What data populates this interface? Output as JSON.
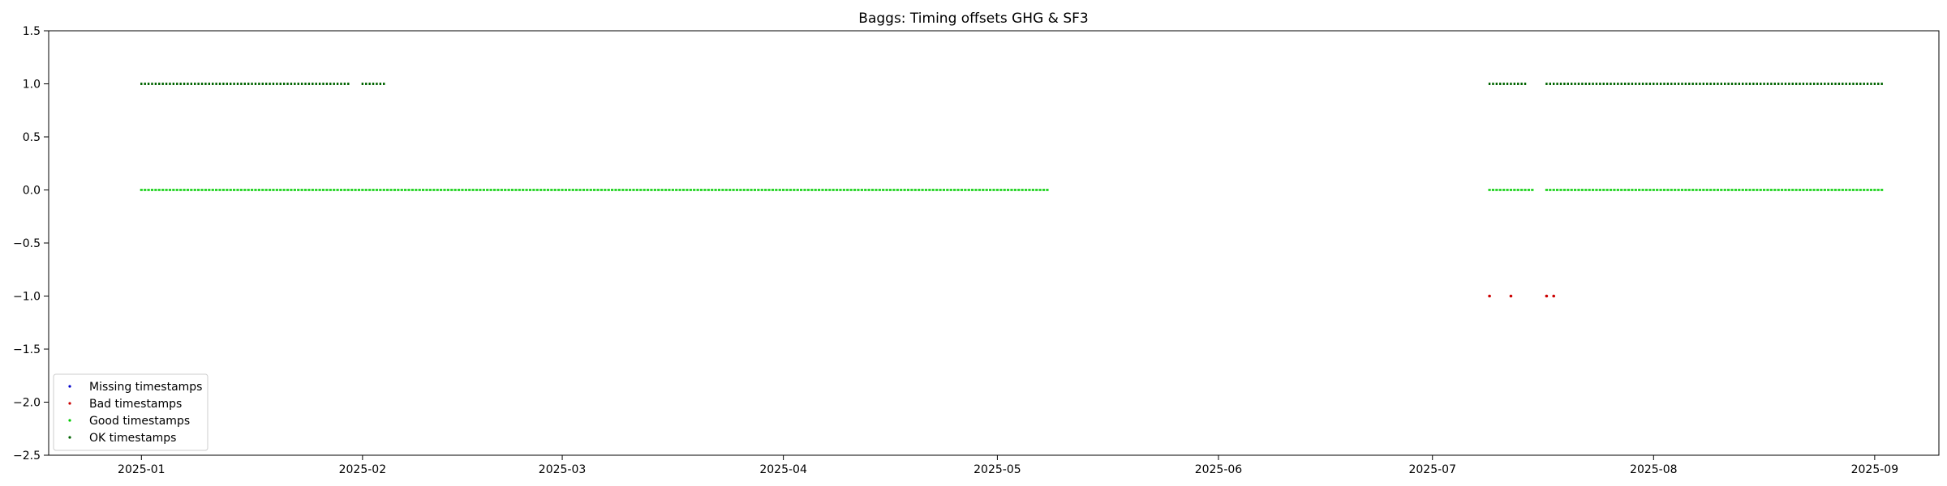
{
  "chart_data": {
    "type": "scatter",
    "title": "Baggs: Timing offsets GHG & SF3",
    "xlabel": "",
    "ylabel": "",
    "x_axis_type": "date",
    "xlim": [
      "2024-12-19",
      "2025-09-10"
    ],
    "ylim": [
      -2.5,
      1.5
    ],
    "x_ticks": [
      "2025-01",
      "2025-02",
      "2025-03",
      "2025-04",
      "2025-05",
      "2025-06",
      "2025-07",
      "2025-08",
      "2025-09"
    ],
    "y_ticks": [
      1.5,
      1.0,
      0.5,
      0.0,
      -0.5,
      -1.0,
      -1.5,
      -2.0,
      -2.5
    ],
    "y_tick_labels": [
      "1.5",
      "1.0",
      "0.5",
      "0.0",
      "−0.5",
      "−1.0",
      "−1.5",
      "−2.0",
      "−2.5"
    ],
    "grid": false,
    "legend": {
      "position": "lower-left",
      "entries": [
        {
          "label": "Missing timestamps",
          "color": "#0000cc"
        },
        {
          "label": "Bad timestamps",
          "color": "#cc0000"
        },
        {
          "label": "Good timestamps",
          "color": "#00cc00"
        },
        {
          "label": "OK timestamps",
          "color": "#006400"
        }
      ]
    },
    "series": [
      {
        "name": "OK timestamps",
        "color": "#006400",
        "y": 1.0,
        "ranges": [
          [
            "2025-01-01",
            "2025-01-30"
          ],
          [
            "2025-02-01",
            "2025-02-04"
          ],
          [
            "2025-07-09",
            "2025-07-14"
          ],
          [
            "2025-07-17",
            "2025-09-02"
          ]
        ]
      },
      {
        "name": "Good timestamps",
        "color": "#00cc00",
        "y": 0.0,
        "ranges": [
          [
            "2025-01-01",
            "2025-05-08"
          ],
          [
            "2025-07-09",
            "2025-07-15"
          ],
          [
            "2025-07-17",
            "2025-09-02"
          ]
        ]
      },
      {
        "name": "Bad timestamps",
        "color": "#cc0000",
        "y": -1.0,
        "x": [
          "2025-07-09",
          "2025-07-12",
          "2025-07-17",
          "2025-07-18"
        ]
      }
    ]
  }
}
